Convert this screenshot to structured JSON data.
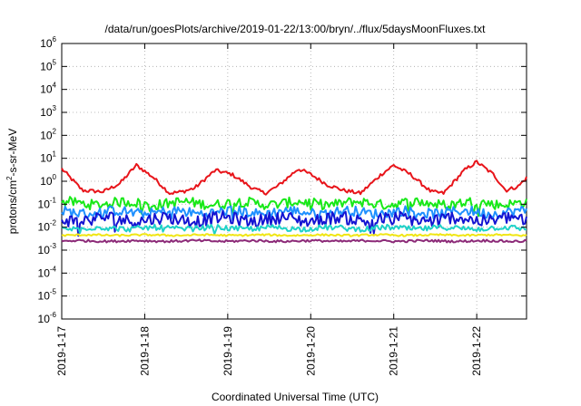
{
  "chart_data": {
    "type": "line",
    "title": "/data/run/goesPlots/archive/2019-01-22/13:00/bryn/../flux/5daysMoonFluxes.txt",
    "xlabel": "Coordinated Universal Time (UTC)",
    "ylabel": {
      "prefix": "protons/cm",
      "exponent": "2",
      "suffix": "-s-sr-MeV"
    },
    "x_axis": {
      "range_days": [
        0,
        5.6
      ],
      "ticks": [
        {
          "day": 0,
          "label": "2019-1-17"
        },
        {
          "day": 1,
          "label": "2019-1-18"
        },
        {
          "day": 2,
          "label": "2019-1-19"
        },
        {
          "day": 3,
          "label": "2019-1-20"
        },
        {
          "day": 4,
          "label": "2019-1-21"
        },
        {
          "day": 5,
          "label": "2019-1-22"
        }
      ]
    },
    "y_axis": {
      "scale": "log",
      "range_exponents": [
        -6,
        6
      ],
      "ticks": [
        {
          "exp": -6,
          "mantissa": "10",
          "power": "-6"
        },
        {
          "exp": -5,
          "mantissa": "10",
          "power": "-5"
        },
        {
          "exp": -4,
          "mantissa": "10",
          "power": "-4"
        },
        {
          "exp": -3,
          "mantissa": "10",
          "power": "-3"
        },
        {
          "exp": -2,
          "mantissa": "10",
          "power": "-2"
        },
        {
          "exp": -1,
          "mantissa": "10",
          "power": "-1"
        },
        {
          "exp": 0,
          "mantissa": "10",
          "power": "0"
        },
        {
          "exp": 1,
          "mantissa": "10",
          "power": "1"
        },
        {
          "exp": 2,
          "mantissa": "10",
          "power": "2"
        },
        {
          "exp": 3,
          "mantissa": "10",
          "power": "3"
        },
        {
          "exp": 4,
          "mantissa": "10",
          "power": "4"
        },
        {
          "exp": 5,
          "mantissa": "10",
          "power": "5"
        },
        {
          "exp": 6,
          "mantissa": "10",
          "power": "6"
        }
      ]
    },
    "grid": true,
    "series": [
      {
        "color": "#e8141a",
        "keypoints": [
          [
            0.0,
            3.5
          ],
          [
            0.25,
            0.4
          ],
          [
            0.5,
            0.35
          ],
          [
            0.7,
            0.8
          ],
          [
            0.9,
            5.0
          ],
          [
            1.1,
            1.5
          ],
          [
            1.3,
            0.3
          ],
          [
            1.45,
            0.35
          ],
          [
            1.6,
            0.5
          ],
          [
            1.85,
            3.0
          ],
          [
            2.05,
            2.0
          ],
          [
            2.3,
            0.5
          ],
          [
            2.45,
            0.3
          ],
          [
            2.6,
            0.6
          ],
          [
            2.85,
            3.5
          ],
          [
            3.0,
            2.0
          ],
          [
            3.2,
            0.7
          ],
          [
            3.4,
            0.4
          ],
          [
            3.6,
            0.3
          ],
          [
            3.85,
            2.0
          ],
          [
            4.0,
            5.0
          ],
          [
            4.2,
            2.0
          ],
          [
            4.45,
            0.35
          ],
          [
            4.6,
            0.3
          ],
          [
            4.85,
            3.0
          ],
          [
            5.0,
            7.0
          ],
          [
            5.2,
            2.0
          ],
          [
            5.35,
            0.4
          ],
          [
            5.5,
            0.6
          ],
          [
            5.6,
            1.4
          ]
        ]
      },
      {
        "color": "#18e818",
        "base": 0.11,
        "amp": 0.22
      },
      {
        "color": "#1e90ff",
        "base": 0.045,
        "amp": 0.22
      },
      {
        "color": "#1414d2",
        "base": 0.022,
        "amp": 0.28
      },
      {
        "color": "#1ed2c8",
        "base": 0.009,
        "amp": 0.12
      },
      {
        "color": "#f0e614",
        "base": 0.0045,
        "amp": 0.04
      },
      {
        "color": "#8c2a78",
        "base": 0.0025,
        "amp": 0.05
      }
    ]
  }
}
